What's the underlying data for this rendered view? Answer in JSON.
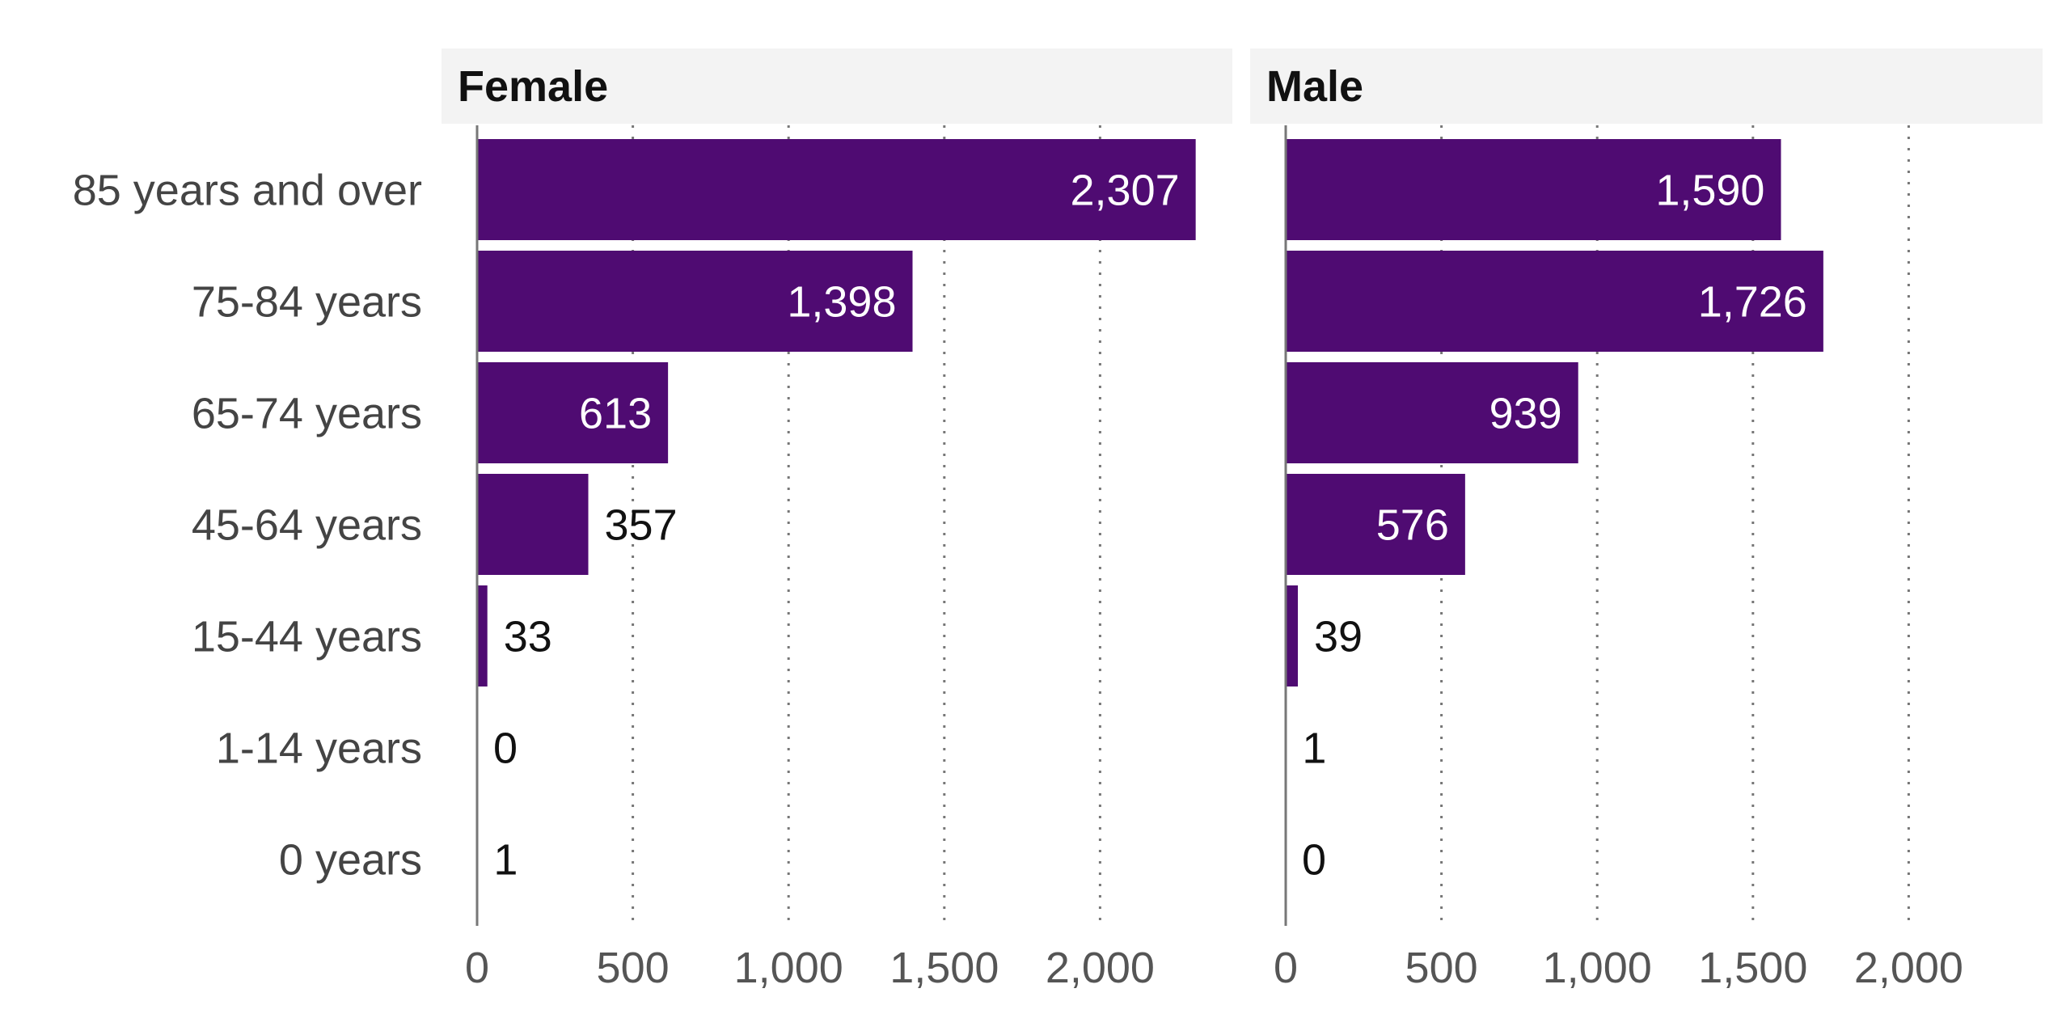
{
  "chart_data": {
    "type": "bar",
    "orientation": "horizontal",
    "categories": [
      "85 years and over",
      "75-84 years",
      "65-74 years",
      "45-64 years",
      "15-44 years",
      "1-14 years",
      "0 years"
    ],
    "series": [
      {
        "name": "Female",
        "values": [
          2307,
          1398,
          613,
          357,
          33,
          0,
          1
        ]
      },
      {
        "name": "Male",
        "values": [
          1590,
          1726,
          939,
          576,
          39,
          1,
          0
        ]
      }
    ],
    "value_labels": {
      "Female": [
        "2,307",
        "1,398",
        "613",
        "357",
        "33",
        "0",
        "1"
      ],
      "Male": [
        "1,590",
        "1,726",
        "939",
        "576",
        "39",
        "1",
        "0"
      ]
    },
    "xticks": [
      0,
      500,
      1000,
      1500,
      2000
    ],
    "xtick_labels": [
      "0",
      "500",
      "1,000",
      "1,500",
      "2,000"
    ],
    "xlim": [
      0,
      2400
    ],
    "grid": "vertical dotted",
    "legend": "none (facet titles)",
    "bar_color": "#4f0b72",
    "facet_header_bg": "#f3f3f3"
  }
}
